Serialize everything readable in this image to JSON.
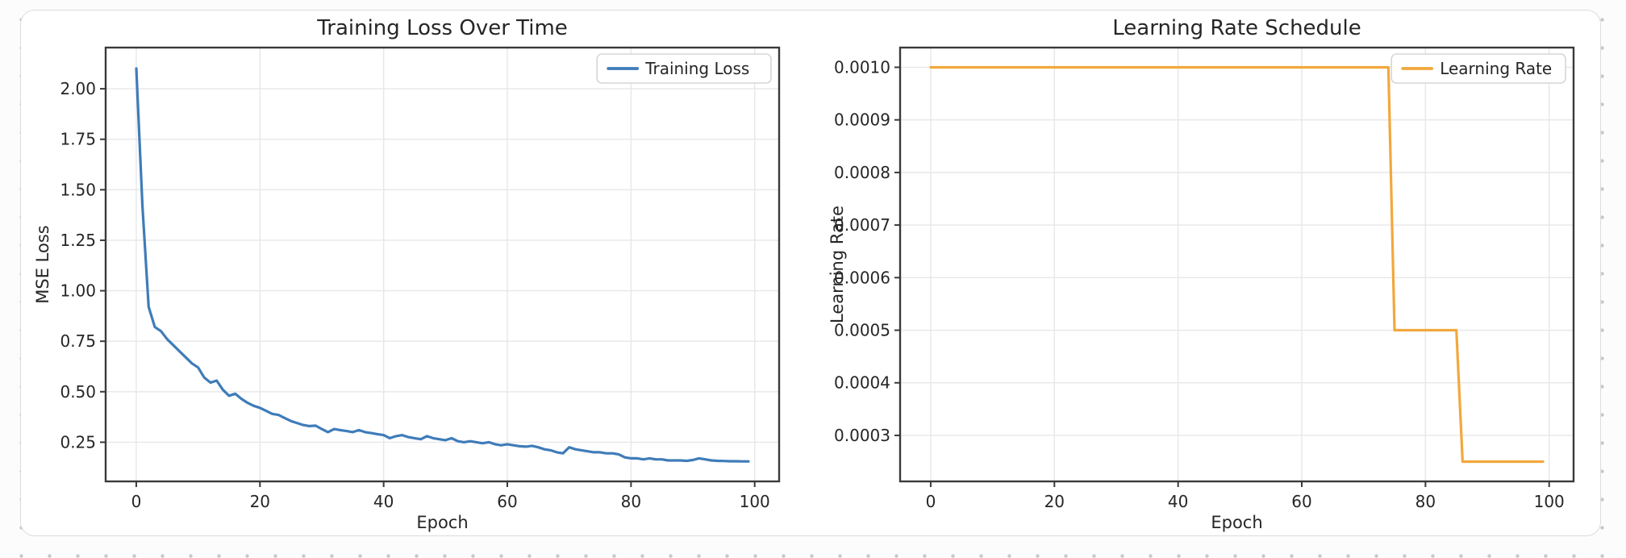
{
  "canvas": {
    "dot_color": "#c7c7cc",
    "card_background": "#ffffff",
    "card_border": "#dcdcdc",
    "spine_color": "#3a3a3a",
    "grid_color": "#e7e7ea",
    "text_color": "#262626"
  },
  "chart_data": [
    {
      "type": "line",
      "title": "Training Loss Over Time",
      "xlabel": "Epoch",
      "ylabel": "MSE Loss",
      "legend_position": "upper right",
      "grid": true,
      "x_is_index": true,
      "xlim": [
        -4.95,
        103.95
      ],
      "ylim": [
        0.056,
        2.204
      ],
      "xticks": [
        0,
        20,
        40,
        60,
        80,
        100
      ],
      "yticks": [
        0.25,
        0.5,
        0.75,
        1.0,
        1.25,
        1.5,
        1.75,
        2.0
      ],
      "ytick_decimals": 2,
      "series": [
        {
          "name": "Training Loss",
          "color": "#3f7cb9",
          "values": [
            2.1,
            1.42,
            0.92,
            0.82,
            0.8,
            0.76,
            0.73,
            0.7,
            0.67,
            0.64,
            0.62,
            0.57,
            0.545,
            0.555,
            0.51,
            0.48,
            0.49,
            0.465,
            0.445,
            0.43,
            0.42,
            0.405,
            0.39,
            0.385,
            0.37,
            0.355,
            0.345,
            0.335,
            0.33,
            0.332,
            0.315,
            0.3,
            0.315,
            0.31,
            0.305,
            0.3,
            0.31,
            0.3,
            0.295,
            0.29,
            0.285,
            0.27,
            0.28,
            0.285,
            0.275,
            0.27,
            0.265,
            0.28,
            0.27,
            0.265,
            0.26,
            0.27,
            0.255,
            0.25,
            0.255,
            0.25,
            0.245,
            0.25,
            0.24,
            0.235,
            0.24,
            0.235,
            0.23,
            0.228,
            0.232,
            0.225,
            0.215,
            0.21,
            0.2,
            0.195,
            0.225,
            0.215,
            0.21,
            0.205,
            0.2,
            0.2,
            0.195,
            0.195,
            0.19,
            0.175,
            0.17,
            0.17,
            0.165,
            0.17,
            0.165,
            0.165,
            0.16,
            0.16,
            0.16,
            0.158,
            0.162,
            0.17,
            0.165,
            0.16,
            0.158,
            0.157,
            0.156,
            0.156,
            0.155,
            0.155
          ]
        }
      ]
    },
    {
      "type": "line",
      "title": "Learning Rate Schedule",
      "xlabel": "Epoch",
      "ylabel": "Learning Rate",
      "legend_position": "upper right",
      "grid": true,
      "x_is_index": true,
      "xlim": [
        -4.95,
        103.95
      ],
      "ylim": [
        0.0002125,
        0.0010375
      ],
      "xticks": [
        0,
        20,
        40,
        60,
        80,
        100
      ],
      "yticks": [
        0.0003,
        0.0004,
        0.0005,
        0.0006,
        0.0007,
        0.0008,
        0.0009,
        0.001
      ],
      "ytick_decimals": 4,
      "series": [
        {
          "name": "Learning Rate",
          "color": "#f2a83d",
          "values": [
            0.001,
            0.001,
            0.001,
            0.001,
            0.001,
            0.001,
            0.001,
            0.001,
            0.001,
            0.001,
            0.001,
            0.001,
            0.001,
            0.001,
            0.001,
            0.001,
            0.001,
            0.001,
            0.001,
            0.001,
            0.001,
            0.001,
            0.001,
            0.001,
            0.001,
            0.001,
            0.001,
            0.001,
            0.001,
            0.001,
            0.001,
            0.001,
            0.001,
            0.001,
            0.001,
            0.001,
            0.001,
            0.001,
            0.001,
            0.001,
            0.001,
            0.001,
            0.001,
            0.001,
            0.001,
            0.001,
            0.001,
            0.001,
            0.001,
            0.001,
            0.001,
            0.001,
            0.001,
            0.001,
            0.001,
            0.001,
            0.001,
            0.001,
            0.001,
            0.001,
            0.001,
            0.001,
            0.001,
            0.001,
            0.001,
            0.001,
            0.001,
            0.001,
            0.001,
            0.001,
            0.001,
            0.001,
            0.001,
            0.001,
            0.001,
            0.0005,
            0.0005,
            0.0005,
            0.0005,
            0.0005,
            0.0005,
            0.0005,
            0.0005,
            0.0005,
            0.0005,
            0.0005,
            0.00025,
            0.00025,
            0.00025,
            0.00025,
            0.00025,
            0.00025,
            0.00025,
            0.00025,
            0.00025,
            0.00025,
            0.00025,
            0.00025,
            0.00025,
            0.00025
          ]
        }
      ]
    }
  ]
}
